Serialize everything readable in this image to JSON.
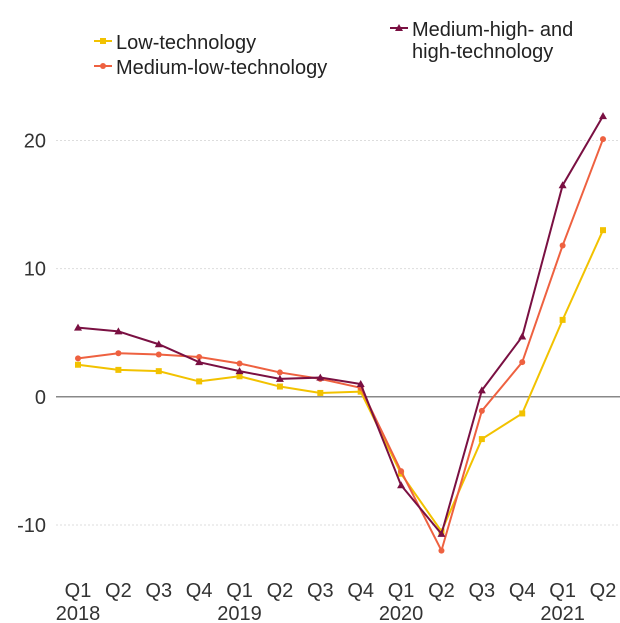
{
  "chart_data": {
    "type": "line",
    "categories": [
      "Q1",
      "Q2",
      "Q3",
      "Q4",
      "Q1",
      "Q2",
      "Q3",
      "Q4",
      "Q1",
      "Q2",
      "Q3",
      "Q4",
      "Q1",
      "Q2"
    ],
    "years": [
      "2018",
      null,
      null,
      null,
      "2019",
      null,
      null,
      null,
      "2020",
      null,
      null,
      null,
      "2021",
      null
    ],
    "series": [
      {
        "name": "Low-technology",
        "color": "#f2c200",
        "marker": "square",
        "values": [
          2.5,
          2.1,
          2.0,
          1.2,
          1.6,
          0.8,
          0.3,
          0.4,
          -6.0,
          -10.5,
          -3.3,
          -1.3,
          6.0,
          13.0
        ]
      },
      {
        "name": "Medium-low-technology",
        "color": "#ee6140",
        "marker": "circle",
        "values": [
          3.0,
          3.4,
          3.3,
          3.1,
          2.6,
          1.9,
          1.4,
          0.7,
          -5.8,
          -12.0,
          -1.1,
          2.7,
          11.8,
          20.1
        ]
      },
      {
        "name": "Medium-high- and high-technology",
        "color": "#7a1042",
        "marker": "triangle",
        "values": [
          5.4,
          5.1,
          4.1,
          2.7,
          2.0,
          1.4,
          1.5,
          1.0,
          -6.9,
          -10.7,
          0.5,
          4.7,
          16.5,
          21.9
        ]
      }
    ],
    "ylim": [
      -12.5,
      23
    ],
    "yticks": [
      -10,
      0,
      10,
      20
    ],
    "grid": true
  }
}
